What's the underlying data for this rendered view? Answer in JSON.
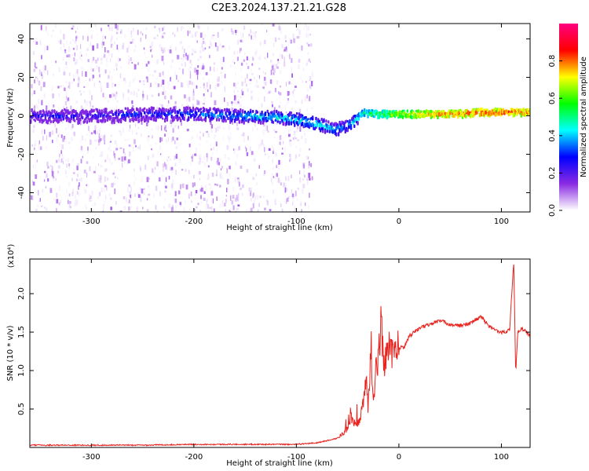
{
  "title": "C2E3.2024.137.21.21.G28",
  "chart_data": [
    {
      "type": "heatmap",
      "xlabel": "Height of straight line (km)",
      "ylabel": "Frequency (Hz)",
      "xlim": [
        -360,
        128
      ],
      "ylim": [
        -50,
        48
      ],
      "xticks": [
        -300,
        -200,
        -100,
        0,
        100
      ],
      "yticks": [
        -40,
        -20,
        0,
        20,
        40
      ],
      "colorbar": {
        "label": "Normalized spectral amplitude",
        "range": [
          0,
          1
        ],
        "ticks": [
          "0.0",
          "0.2",
          "0.4",
          "0.6",
          "0.8"
        ],
        "colors": [
          "#ffffff",
          "#8a2be2",
          "#0000ff",
          "#00ffff",
          "#00ff00",
          "#ffff00",
          "#ff0000",
          "#ff0080"
        ]
      },
      "ridge": {
        "x": [
          -360,
          -300,
          -250,
          -200,
          -150,
          -110,
          -90,
          -75,
          -65,
          -55,
          -45,
          -35,
          -25,
          -15,
          0,
          20,
          50,
          80,
          100,
          128
        ],
        "freq": [
          0,
          0,
          1,
          1,
          0,
          -1,
          -3,
          -5,
          -7,
          -6,
          -3,
          2,
          1,
          1,
          1,
          1,
          1,
          2,
          2,
          2
        ],
        "amplitude": [
          0.32,
          0.33,
          0.36,
          0.42,
          0.48,
          0.5,
          0.52,
          0.5,
          0.48,
          0.45,
          0.48,
          0.55,
          0.6,
          0.65,
          0.72,
          0.78,
          0.85,
          0.88,
          0.86,
          0.85
        ]
      }
    },
    {
      "type": "line",
      "xlabel": "Height of straight line (km)",
      "ylabel": "SNR (10 * v/v)",
      "yscale_label": "(x10⁴)",
      "xlim": [
        -360,
        128
      ],
      "ylim": [
        0,
        2.45
      ],
      "xticks": [
        -300,
        -200,
        -100,
        0,
        100
      ],
      "yticks": [
        0.5,
        1.0,
        1.5,
        2.0
      ],
      "color": "#e8231e",
      "series": [
        {
          "x": [
            -360,
            -300,
            -250,
            -200,
            -150,
            -100,
            -80,
            -60,
            -50,
            -45,
            -40,
            -35,
            -32,
            -30,
            -27,
            -25,
            -22,
            -20,
            -17,
            -15,
            -13,
            -10,
            -5,
            0,
            5,
            10,
            20,
            30,
            40,
            50,
            60,
            70,
            80,
            90,
            100,
            108,
            112,
            114,
            116,
            118,
            120,
            128
          ],
          "y": [
            0.03,
            0.03,
            0.03,
            0.04,
            0.04,
            0.04,
            0.06,
            0.12,
            0.25,
            0.35,
            0.3,
            0.55,
            0.95,
            0.5,
            1.3,
            0.6,
            1.05,
            1.15,
            1.7,
            1.05,
            1.2,
            1.2,
            1.25,
            1.3,
            1.3,
            1.45,
            1.55,
            1.6,
            1.65,
            1.6,
            1.58,
            1.62,
            1.7,
            1.55,
            1.5,
            1.52,
            2.43,
            0.95,
            1.5,
            1.5,
            1.55,
            1.45
          ]
        }
      ]
    }
  ]
}
